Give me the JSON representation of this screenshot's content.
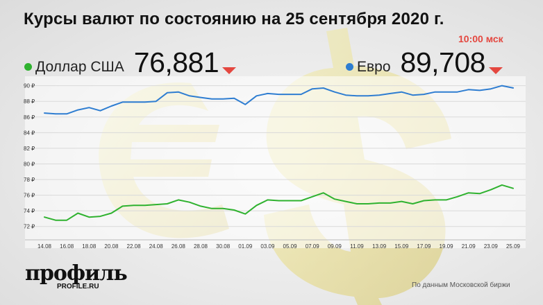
{
  "header": {
    "title": "Курсы валют по состоянию на 25 сентября 2020 г.",
    "time": "10:00 мск"
  },
  "legend": {
    "usd": {
      "name": "Доллар США",
      "value": "76,881",
      "color": "#2fb22f"
    },
    "eur": {
      "name": "Евро",
      "value": "89,708",
      "color": "#2e7dd1"
    },
    "arrow_color": "#e4473f"
  },
  "chart_data": {
    "type": "line",
    "x": [
      "14.08",
      "15.08",
      "16.08",
      "17.08",
      "18.08",
      "19.08",
      "20.08",
      "21.08",
      "22.08",
      "23.08",
      "24.08",
      "25.08",
      "26.08",
      "27.08",
      "28.08",
      "29.08",
      "30.08",
      "31.08",
      "01.09",
      "02.09",
      "03.09",
      "04.09",
      "05.09",
      "06.09",
      "07.09",
      "08.09",
      "09.09",
      "10.09",
      "11.09",
      "12.09",
      "13.09",
      "14.09",
      "15.09",
      "16.09",
      "17.09",
      "18.09",
      "19.09",
      "20.09",
      "21.09",
      "22.09",
      "23.09",
      "24.09",
      "25.09"
    ],
    "xticks": [
      "14.08",
      "16.08",
      "18.08",
      "20.08",
      "22.08",
      "24.08",
      "26.08",
      "28.08",
      "30.08",
      "01.09",
      "03.09",
      "05.09",
      "07.09",
      "09.09",
      "11.09",
      "13.09",
      "15.09",
      "17.09",
      "19.09",
      "21.09",
      "23.09",
      "25.09"
    ],
    "series": [
      {
        "name": "Евро",
        "color": "#2e7dd1",
        "values": [
          86.5,
          86.4,
          86.4,
          86.9,
          87.2,
          86.8,
          87.4,
          87.9,
          87.9,
          87.9,
          88.0,
          89.1,
          89.2,
          88.7,
          88.5,
          88.3,
          88.3,
          88.4,
          87.6,
          88.7,
          89.0,
          88.9,
          88.9,
          88.9,
          89.6,
          89.7,
          89.2,
          88.8,
          88.7,
          88.7,
          88.8,
          89.0,
          89.2,
          88.8,
          88.9,
          89.2,
          89.2,
          89.2,
          89.5,
          89.4,
          89.6,
          90.0,
          89.708
        ]
      },
      {
        "name": "Доллар США",
        "color": "#2fb22f",
        "values": [
          73.2,
          72.8,
          72.8,
          73.7,
          73.2,
          73.3,
          73.7,
          74.6,
          74.7,
          74.7,
          74.8,
          74.9,
          75.4,
          75.1,
          74.6,
          74.3,
          74.3,
          74.1,
          73.6,
          74.7,
          75.4,
          75.3,
          75.3,
          75.3,
          75.8,
          76.3,
          75.5,
          75.2,
          74.9,
          74.9,
          75.0,
          75.0,
          75.2,
          74.9,
          75.3,
          75.4,
          75.4,
          75.8,
          76.3,
          76.2,
          76.7,
          77.3,
          76.881
        ]
      }
    ],
    "yticks": [
      72,
      74,
      76,
      78,
      80,
      82,
      84,
      86,
      88,
      90
    ],
    "ytick_suffix": " ₽",
    "ylim": [
      71,
      90.5
    ],
    "grid": true
  },
  "footer": {
    "logo": "профиль",
    "logo_sub": "PROFILE.RU",
    "source": "По данным Московской биржи"
  }
}
